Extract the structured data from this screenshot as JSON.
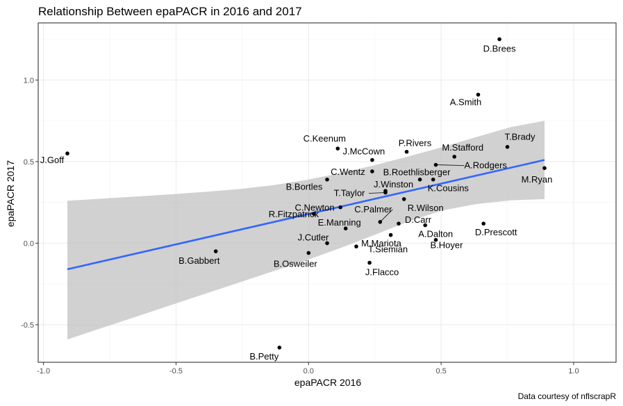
{
  "chart_data": {
    "type": "scatter",
    "title": "Relationship Between epaPACR in 2016 and 2017",
    "xlabel": "epaPACR 2016",
    "ylabel": "epaPACR 2017",
    "caption": "Data courtesy of nflscrapR",
    "xlim": [
      -1.02,
      1.16
    ],
    "ylim": [
      -0.73,
      1.35
    ],
    "xticks": [
      -1.0,
      -0.5,
      0.0,
      0.5,
      1.0
    ],
    "xtick_labels": [
      "-1.0",
      "-0.5",
      "0.0",
      "0.5",
      "1.0"
    ],
    "yticks": [
      -0.5,
      0.0,
      0.5,
      1.0
    ],
    "ytick_labels": [
      "-0.5",
      "0.0",
      "0.5",
      "1.0"
    ],
    "grid": true,
    "background": "#ffffff",
    "panel_border_color": "#333333",
    "grid_color": "#ebebeb",
    "point_color": "#000000",
    "regression": {
      "x_range": [
        -0.91,
        0.89
      ],
      "y_at_start": -0.16,
      "y_at_end": 0.51,
      "line_color": "#3366ff",
      "band_color": "#bfbfbf",
      "band_upper": [
        0.26,
        0.2724,
        0.2853,
        0.299,
        0.314,
        0.3309,
        0.3541,
        0.3872,
        0.4286,
        0.4771,
        0.5311,
        0.5887,
        0.6501,
        0.7113,
        0.75
      ],
      "band_lower": [
        -0.59,
        -0.5209,
        -0.4517,
        -0.3824,
        -0.3131,
        -0.2439,
        -0.1747,
        -0.1055,
        -0.0307,
        0.0492,
        0.1328,
        0.2005,
        0.2398,
        0.2623,
        0.27
      ]
    },
    "points": [
      {
        "name": "D.Brees",
        "x": 0.72,
        "y": 1.25
      },
      {
        "name": "A.Smith",
        "x": 0.64,
        "y": 0.91
      },
      {
        "name": "J.Goff",
        "x": -0.91,
        "y": 0.55
      },
      {
        "name": "T.Brady",
        "x": 0.75,
        "y": 0.59
      },
      {
        "name": "C.Keenum",
        "x": 0.11,
        "y": 0.58
      },
      {
        "name": "P.Rivers",
        "x": 0.37,
        "y": 0.56
      },
      {
        "name": "M.Stafford",
        "x": 0.55,
        "y": 0.53
      },
      {
        "name": "J.McCown",
        "x": 0.24,
        "y": 0.51
      },
      {
        "name": "A.Rodgers",
        "x": 0.48,
        "y": 0.48
      },
      {
        "name": "M.Ryan",
        "x": 0.89,
        "y": 0.46
      },
      {
        "name": "C.Wentz",
        "x": 0.24,
        "y": 0.44
      },
      {
        "name": "B.Roethlisberger",
        "x": 0.42,
        "y": 0.39
      },
      {
        "name": "K.Cousins",
        "x": 0.47,
        "y": 0.39
      },
      {
        "name": "B.Bortles",
        "x": 0.07,
        "y": 0.39
      },
      {
        "name": "J.Winston",
        "x": 0.29,
        "y": 0.32
      },
      {
        "name": "T.Taylor",
        "x": 0.29,
        "y": 0.31
      },
      {
        "name": "R.Wilson",
        "x": 0.36,
        "y": 0.27
      },
      {
        "name": "C.Newton",
        "x": 0.12,
        "y": 0.22
      },
      {
        "name": "C.Palmer",
        "x": 0.27,
        "y": 0.13
      },
      {
        "name": "R.Fitzpatrick",
        "x": 0.02,
        "y": 0.18
      },
      {
        "name": "D.Carr",
        "x": 0.34,
        "y": 0.12
      },
      {
        "name": "D.Prescott",
        "x": 0.66,
        "y": 0.12
      },
      {
        "name": "A.Dalton",
        "x": 0.44,
        "y": 0.11
      },
      {
        "name": "E.Manning",
        "x": 0.14,
        "y": 0.09
      },
      {
        "name": "J.Cutler",
        "x": 0.07,
        "y": 0.0
      },
      {
        "name": "M.Mariota",
        "x": 0.18,
        "y": -0.02
      },
      {
        "name": "B.Hoyer",
        "x": 0.48,
        "y": 0.02
      },
      {
        "name": "B.Gabbert",
        "x": -0.35,
        "y": -0.05
      },
      {
        "name": "B.Osweiler",
        "x": 0.0,
        "y": -0.06
      },
      {
        "name": "T.Siemian",
        "x": 0.31,
        "y": 0.05
      },
      {
        "name": "J.Flacco",
        "x": 0.23,
        "y": -0.12
      },
      {
        "name": "B.Petty",
        "x": -0.11,
        "y": -0.64
      }
    ]
  }
}
